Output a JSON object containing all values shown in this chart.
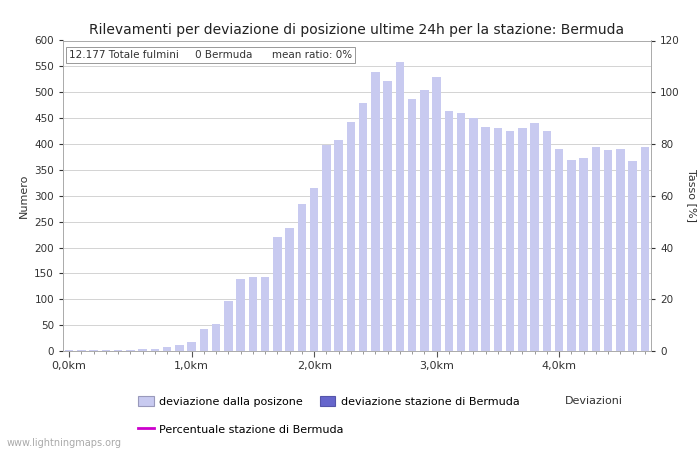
{
  "title": "Rilevamenti per deviazione di posizione ultime 24h per la stazione: Bermuda",
  "subtitle": "12.177 Totale fulmini     0 Bermuda      mean ratio: 0%",
  "xlabel": "Deviazioni",
  "ylabel_left": "Numero",
  "ylabel_right": "Tasso [%]",
  "bar_color_light": "#c8caf0",
  "bar_color_dark": "#6666cc",
  "line_color": "#cc00cc",
  "watermark": "www.lightningmaps.org",
  "legend_labels": [
    "deviazione dalla posizone",
    "deviazione stazione di Bermuda",
    "Percentuale stazione di Bermuda"
  ],
  "ylim_left": [
    0,
    600
  ],
  "ylim_right": [
    0,
    120
  ],
  "yticks_left": [
    0,
    50,
    100,
    150,
    200,
    250,
    300,
    350,
    400,
    450,
    500,
    550,
    600
  ],
  "yticks_right": [
    0,
    20,
    40,
    60,
    80,
    100,
    120
  ],
  "xtick_labels": [
    "0,0km",
    "1,0km",
    "2,0km",
    "3,0km",
    "4,0km"
  ],
  "xtick_positions": [
    0,
    10,
    20,
    30,
    40
  ],
  "bar_values": [
    1,
    1,
    2,
    1,
    1,
    2,
    3,
    4,
    8,
    11,
    18,
    42,
    53,
    96,
    140,
    143,
    143,
    221,
    237,
    285,
    315,
    398,
    407,
    442,
    480,
    540,
    522,
    558,
    487,
    505,
    530,
    463,
    460,
    450,
    432,
    430,
    425,
    430,
    441,
    425,
    390,
    370,
    373,
    395,
    388,
    390,
    367,
    395
  ],
  "n_bars": 48,
  "km_per_bar": 0.1,
  "fig_width": 7.0,
  "fig_height": 4.5,
  "dpi": 100
}
